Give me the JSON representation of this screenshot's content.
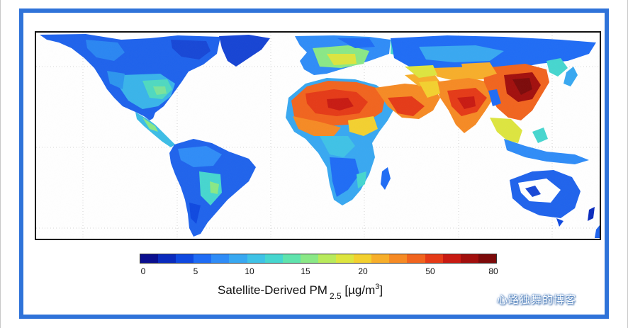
{
  "colors": {
    "frame_border": "#2f73d9",
    "background": "#ffffff"
  },
  "map": {
    "projection": "equirectangular world",
    "grid": "dotted",
    "country_borders": true,
    "high_regions": [
      "North Africa / Sahara",
      "Middle East",
      "India",
      "Eastern China"
    ]
  },
  "colorbar": {
    "ticks": [
      "0",
      "5",
      "10",
      "15",
      "20",
      "50",
      "80"
    ],
    "colors": [
      "#0a0f8f",
      "#0a2bbd",
      "#0f49e0",
      "#1f6cf5",
      "#2f8cf7",
      "#38a8f1",
      "#3fc2e6",
      "#46d6cf",
      "#5fe3ad",
      "#8ae886",
      "#b8ea5c",
      "#dde53f",
      "#f3d02f",
      "#f7ae2a",
      "#f68a24",
      "#f1641e",
      "#e53a17",
      "#c81a12",
      "#a20f0d",
      "#7c0a0a"
    ],
    "title_main": "Satellite-Derived PM",
    "title_sub": "2.5",
    "title_unit_prefix": "[µg/m",
    "title_unit_sup": "3",
    "title_unit_suffix": "]"
  },
  "watermark": "心路独舞的博客"
}
